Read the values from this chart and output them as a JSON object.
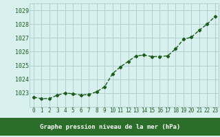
{
  "hours": [
    0,
    1,
    2,
    3,
    4,
    5,
    6,
    7,
    8,
    9,
    10,
    11,
    12,
    13,
    14,
    15,
    16,
    17,
    18,
    19,
    20,
    21,
    22,
    23
  ],
  "pressure": [
    1022.7,
    1022.6,
    1022.6,
    1022.85,
    1023.0,
    1022.95,
    1022.85,
    1022.9,
    1023.1,
    1023.45,
    1024.4,
    1024.9,
    1025.3,
    1025.7,
    1025.75,
    1025.65,
    1025.65,
    1025.7,
    1026.2,
    1026.9,
    1027.05,
    1027.55,
    1028.0,
    1028.55
  ],
  "line_color": "#1a5c1a",
  "marker": "D",
  "marker_size": 2.2,
  "bg_color": "#d8f0ee",
  "grid_color": "#aacccc",
  "ylim": [
    1022.0,
    1029.5
  ],
  "yticks": [
    1023,
    1024,
    1025,
    1026,
    1027,
    1028,
    1029
  ],
  "xlabel": "Graphe pression niveau de la mer (hPa)",
  "tick_color": "#1a5c1a",
  "line_width": 1.0,
  "bottom_bar_color": "#2a6e2a",
  "tick_fontsize": 5.5,
  "ytick_fontsize": 6.0
}
